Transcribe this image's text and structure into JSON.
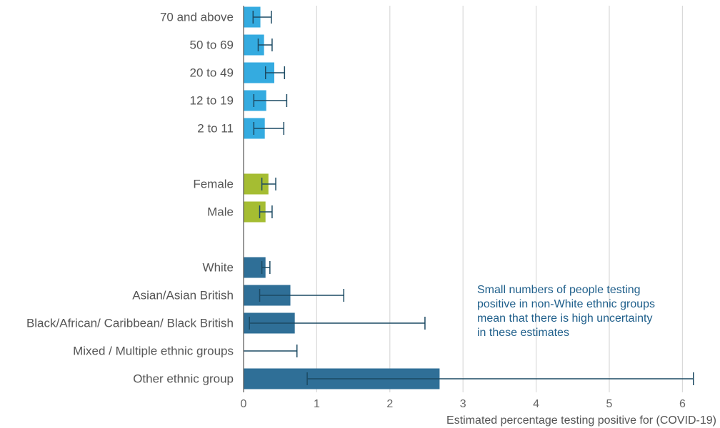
{
  "chart_data": {
    "type": "bar",
    "orientation": "horizontal",
    "xlabel": "Estimated percentage testing positive for (COVID-19)",
    "xlim": [
      0,
      6.3
    ],
    "xticks": [
      0,
      1,
      2,
      3,
      4,
      5,
      6
    ],
    "grid": "vertical",
    "groups": [
      {
        "color": "#34abe0",
        "bars": [
          {
            "label": "70 and above",
            "value": 0.23,
            "ci": [
              0.13,
              0.38
            ]
          },
          {
            "label": "50 to 69",
            "value": 0.28,
            "ci": [
              0.2,
              0.39
            ]
          },
          {
            "label": "20 to 49",
            "value": 0.42,
            "ci": [
              0.3,
              0.56
            ]
          },
          {
            "label": "12 to 19",
            "value": 0.31,
            "ci": [
              0.14,
              0.59
            ]
          },
          {
            "label": "2 to 11",
            "value": 0.29,
            "ci": [
              0.14,
              0.55
            ]
          }
        ]
      },
      {
        "color": "#a5bd32",
        "bars": [
          {
            "label": "Female",
            "value": 0.34,
            "ci": [
              0.25,
              0.44
            ]
          },
          {
            "label": "Male",
            "value": 0.3,
            "ci": [
              0.22,
              0.39
            ]
          }
        ]
      },
      {
        "color": "#2f6f97",
        "bars": [
          {
            "label": "White",
            "value": 0.3,
            "ci": [
              0.25,
              0.36
            ]
          },
          {
            "label": "Asian/Asian British",
            "value": 0.64,
            "ci": [
              0.22,
              1.37
            ]
          },
          {
            "label": "Black/African/ Caribbean/ Black British",
            "value": 0.7,
            "ci": [
              0.08,
              2.48
            ]
          },
          {
            "label": "Mixed / Multiple ethnic groups",
            "value": 0.0,
            "ci": [
              0.0,
              0.73
            ]
          },
          {
            "label": "Other ethnic group",
            "value": 2.68,
            "ci": [
              0.87,
              6.15
            ]
          }
        ]
      }
    ],
    "annotation": [
      "Small numbers of people testing",
      "positive in non-White ethnic groups",
      "mean that there is high uncertainty",
      "in these estimates"
    ]
  }
}
